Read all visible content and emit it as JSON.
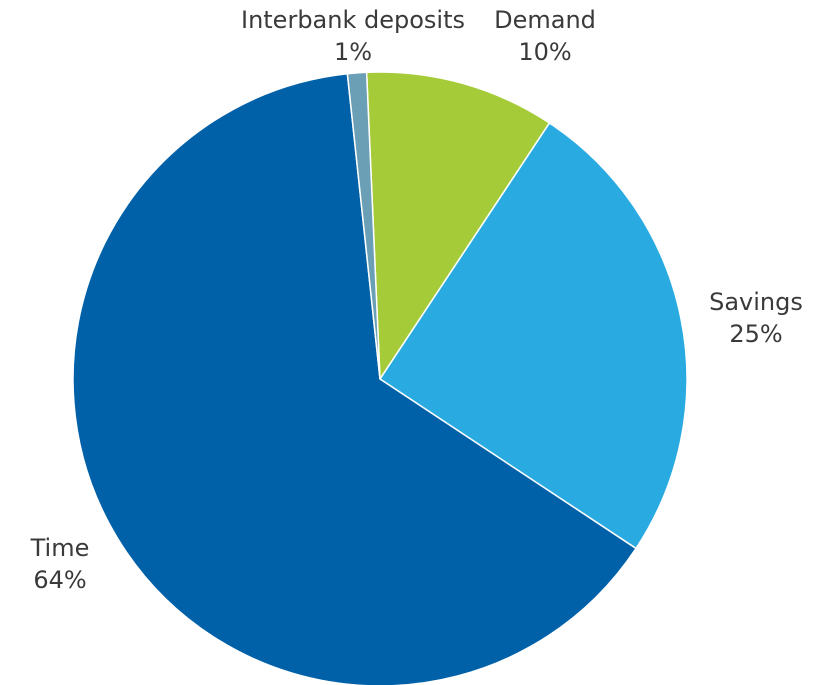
{
  "chart_data": {
    "type": "pie",
    "title": "",
    "start_angle_deg": -2.5,
    "direction": "clockwise",
    "slices": [
      {
        "label": "Demand",
        "value": 10,
        "value_label": "10%",
        "color": "#a5cb39"
      },
      {
        "label": "Savings",
        "value": 25,
        "value_label": "25%",
        "color": "#29abe2"
      },
      {
        "label": "Time",
        "value": 64,
        "value_label": "64%",
        "color": "#0060a8"
      },
      {
        "label": "Interbank deposits",
        "value": 1,
        "value_label": "1%",
        "color": "#6a9fb5"
      }
    ]
  }
}
